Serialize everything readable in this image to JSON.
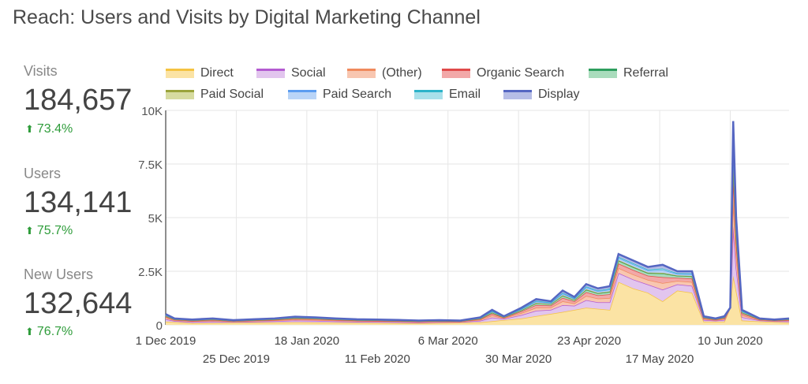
{
  "title": "Reach: Users and Visits by Digital Marketing Channel",
  "metrics": [
    {
      "label": "Visits",
      "value": "184,657",
      "change": "73.4%"
    },
    {
      "label": "Users",
      "value": "134,141",
      "change": "75.7%"
    },
    {
      "label": "New Users",
      "value": "132,644",
      "change": "76.7%"
    }
  ],
  "chart_data": {
    "type": "area",
    "stacked": true,
    "x_range": [
      "2019-12-01",
      "2020-06-30"
    ],
    "ylim": [
      0,
      10000
    ],
    "yticks": [
      "0",
      "2.5K",
      "5K",
      "7.5K",
      "10K"
    ],
    "xticks_top": [
      "1 Dec 2019",
      "18 Jan 2020",
      "6 Mar 2020",
      "23 Apr 2020",
      "10 Jun 2020"
    ],
    "xticks_bottom": [
      "25 Dec 2019",
      "11 Feb 2020",
      "30 Mar 2020",
      "17 May 2020"
    ],
    "grid": true,
    "legend_position": "top",
    "series": [
      {
        "name": "Direct",
        "color": "#f5c342",
        "fill": "#fbe3a4"
      },
      {
        "name": "Social",
        "color": "#b45bd1",
        "fill": "#e2c5ee"
      },
      {
        "name": "(Other)",
        "color": "#f08a5d",
        "fill": "#f8c6b0"
      },
      {
        "name": "Organic Search",
        "color": "#e04a4a",
        "fill": "#f2a8a8"
      },
      {
        "name": "Referral",
        "color": "#2e9e5e",
        "fill": "#a9dcbc"
      },
      {
        "name": "Paid Social",
        "color": "#9aa33a",
        "fill": "#d6db9f"
      },
      {
        "name": "Paid Search",
        "color": "#5b9cf0",
        "fill": "#b9d4f7"
      },
      {
        "name": "Email",
        "color": "#2bb3c9",
        "fill": "#a8e0ea"
      },
      {
        "name": "Display",
        "color": "#5566c2",
        "fill": "#b6bde6"
      }
    ],
    "total_points": [
      [
        "2019-12-01",
        500
      ],
      [
        "2019-12-04",
        300
      ],
      [
        "2019-12-10",
        250
      ],
      [
        "2019-12-17",
        300
      ],
      [
        "2019-12-24",
        220
      ],
      [
        "2019-12-31",
        260
      ],
      [
        "2020-01-07",
        300
      ],
      [
        "2020-01-14",
        380
      ],
      [
        "2020-01-21",
        350
      ],
      [
        "2020-01-28",
        300
      ],
      [
        "2020-02-04",
        260
      ],
      [
        "2020-02-11",
        250
      ],
      [
        "2020-02-18",
        230
      ],
      [
        "2020-02-25",
        200
      ],
      [
        "2020-03-03",
        220
      ],
      [
        "2020-03-10",
        200
      ],
      [
        "2020-03-17",
        350
      ],
      [
        "2020-03-21",
        700
      ],
      [
        "2020-03-25",
        400
      ],
      [
        "2020-03-31",
        800
      ],
      [
        "2020-04-05",
        1200
      ],
      [
        "2020-04-10",
        1100
      ],
      [
        "2020-04-14",
        1600
      ],
      [
        "2020-04-18",
        1300
      ],
      [
        "2020-04-22",
        1900
      ],
      [
        "2020-04-26",
        1700
      ],
      [
        "2020-04-30",
        1800
      ],
      [
        "2020-05-03",
        3300
      ],
      [
        "2020-05-08",
        3000
      ],
      [
        "2020-05-13",
        2700
      ],
      [
        "2020-05-18",
        2800
      ],
      [
        "2020-05-23",
        2500
      ],
      [
        "2020-05-28",
        2500
      ],
      [
        "2020-06-01",
        400
      ],
      [
        "2020-06-05",
        300
      ],
      [
        "2020-06-08",
        400
      ],
      [
        "2020-06-10",
        800
      ],
      [
        "2020-06-11",
        9500
      ],
      [
        "2020-06-12",
        5000
      ],
      [
        "2020-06-14",
        700
      ],
      [
        "2020-06-20",
        300
      ],
      [
        "2020-06-25",
        250
      ],
      [
        "2020-06-30",
        300
      ]
    ],
    "direct_points": [
      [
        "2019-12-01",
        150
      ],
      [
        "2019-12-10",
        80
      ],
      [
        "2020-01-14",
        120
      ],
      [
        "2020-02-25",
        70
      ],
      [
        "2020-03-17",
        120
      ],
      [
        "2020-03-31",
        300
      ],
      [
        "2020-04-14",
        600
      ],
      [
        "2020-04-22",
        800
      ],
      [
        "2020-04-30",
        700
      ],
      [
        "2020-05-03",
        2000
      ],
      [
        "2020-05-08",
        1700
      ],
      [
        "2020-05-13",
        1500
      ],
      [
        "2020-05-18",
        1100
      ],
      [
        "2020-05-23",
        1600
      ],
      [
        "2020-05-28",
        1500
      ],
      [
        "2020-06-01",
        150
      ],
      [
        "2020-06-08",
        150
      ],
      [
        "2020-06-11",
        2300
      ],
      [
        "2020-06-14",
        200
      ],
      [
        "2020-06-30",
        100
      ]
    ]
  }
}
